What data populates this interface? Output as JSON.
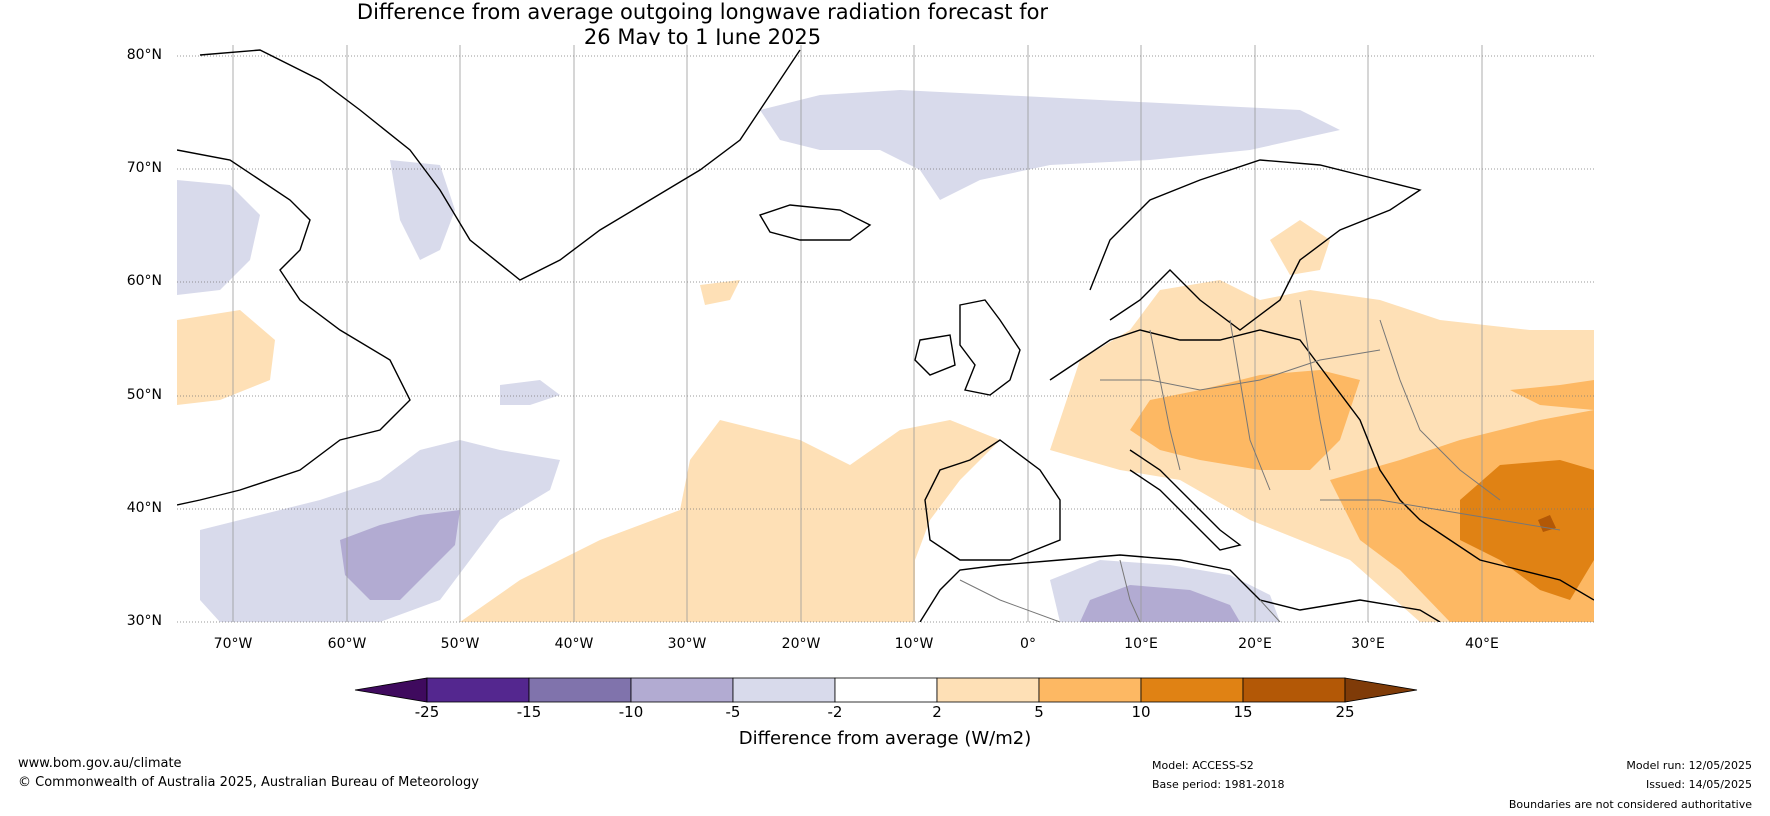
{
  "title_line1": "Difference from average outgoing longwave radiation forecast for",
  "title_line2": "26 May to 1 June 2025",
  "map": {
    "lat_labels": [
      "80°N",
      "70°N",
      "60°N",
      "50°N",
      "40°N",
      "30°N"
    ],
    "lon_labels": [
      "70°W",
      "60°W",
      "50°W",
      "40°W",
      "30°W",
      "20°W",
      "10°W",
      "0°",
      "10°E",
      "20°E",
      "30°E",
      "40°E"
    ]
  },
  "colorbar": {
    "title": "Difference from average (W/m2)",
    "ticks": [
      "-25",
      "-15",
      "-10",
      "-5",
      "-2",
      "2",
      "5",
      "10",
      "15",
      "25"
    ],
    "colors": [
      "#3f0a5e",
      "#54278f",
      "#8073ac",
      "#b2abd2",
      "#d8daeb",
      "#ffffff",
      "#fee0b6",
      "#fdb863",
      "#e08214",
      "#b35806",
      "#7f3b08"
    ]
  },
  "footer": {
    "website": "www.bom.gov.au/climate",
    "copyright": "© Commonwealth of Australia 2025, Australian Bureau of Meteorology",
    "model": "Model: ACCESS-S2",
    "base_period": "Base period: 1981-2018",
    "model_run": "Model run: 12/05/2025",
    "issued": "Issued: 14/05/2025",
    "disclaimer": "Boundaries are not considered authoritative"
  }
}
